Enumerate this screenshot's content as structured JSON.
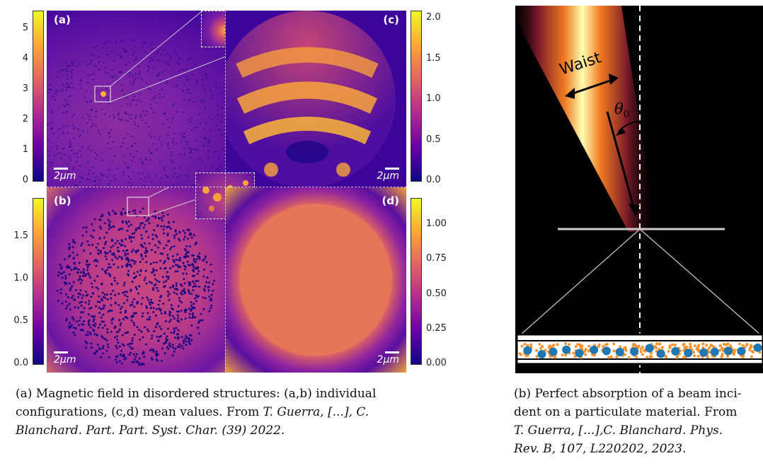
{
  "figure_a": {
    "panels": [
      {
        "label": "(a)",
        "scalebar": "2μm"
      },
      {
        "label": "(b)",
        "scalebar": "2μm"
      },
      {
        "label": "(c)",
        "scalebar": "2μm"
      },
      {
        "label": "(d)",
        "scalebar": "2μm"
      }
    ],
    "colorbars": {
      "top_left": [
        "5",
        "4",
        "3",
        "2",
        "1",
        "0"
      ],
      "bottom_left": [
        "1.5",
        "1.0",
        "0.5",
        "0.0"
      ],
      "top_right": [
        "2.0",
        "1.5",
        "1.0",
        "0.5",
        "0.0"
      ],
      "bottom_right": [
        "1.00",
        "0.75",
        "0.50",
        "0.25",
        "0.00"
      ]
    },
    "caption": {
      "line1": "(a) Magnetic field in disordered structures: (a,b) individual",
      "line2_plain": "configurations, (c,d) mean values. From ",
      "line2_italic": "T. Guerra, [...], C.",
      "line3_italic": "Blanchard. Part. Part. Syst. Char. (39) 2022."
    }
  },
  "figure_b": {
    "waist_label": "Waist",
    "theta_label": "θ",
    "theta_sub": "0",
    "caption": {
      "line1": "(b) Perfect absorption of a beam inci-",
      "line2": "dent on a particulate material. From",
      "line3_italic": "T. Guerra, [...],C. Blanchard. Phys.",
      "line4_italic": "Rev. B, 107, L220202, 2023."
    }
  }
}
